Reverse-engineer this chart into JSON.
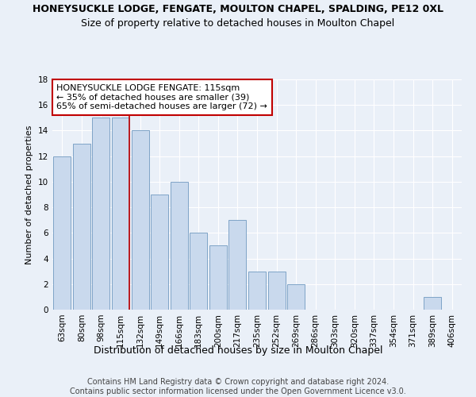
{
  "title": "HONEYSUCKLE LODGE, FENGATE, MOULTON CHAPEL, SPALDING, PE12 0XL",
  "subtitle": "Size of property relative to detached houses in Moulton Chapel",
  "xlabel": "Distribution of detached houses by size in Moulton Chapel",
  "ylabel": "Number of detached properties",
  "categories": [
    "63sqm",
    "80sqm",
    "98sqm",
    "115sqm",
    "132sqm",
    "149sqm",
    "166sqm",
    "183sqm",
    "200sqm",
    "217sqm",
    "235sqm",
    "252sqm",
    "269sqm",
    "286sqm",
    "303sqm",
    "320sqm",
    "337sqm",
    "354sqm",
    "371sqm",
    "389sqm",
    "406sqm"
  ],
  "values": [
    12,
    13,
    15,
    15,
    14,
    9,
    10,
    6,
    5,
    7,
    3,
    3,
    2,
    0,
    0,
    0,
    0,
    0,
    0,
    1,
    0
  ],
  "bar_color": "#c9d9ed",
  "bar_edge_color": "#7099c0",
  "highlight_index": 3,
  "highlight_line_color": "#c00000",
  "ylim": [
    0,
    18
  ],
  "yticks": [
    0,
    2,
    4,
    6,
    8,
    10,
    12,
    14,
    16,
    18
  ],
  "annotation_text": "HONEYSUCKLE LODGE FENGATE: 115sqm\n← 35% of detached houses are smaller (39)\n65% of semi-detached houses are larger (72) →",
  "annotation_box_color": "#ffffff",
  "annotation_box_edge": "#c00000",
  "footer_line1": "Contains HM Land Registry data © Crown copyright and database right 2024.",
  "footer_line2": "Contains public sector information licensed under the Open Government Licence v3.0.",
  "bg_color": "#eaf0f8",
  "grid_color": "#ffffff",
  "title_fontsize": 9,
  "subtitle_fontsize": 9,
  "ylabel_fontsize": 8,
  "xlabel_fontsize": 9,
  "tick_fontsize": 7.5,
  "annotation_fontsize": 8,
  "footer_fontsize": 7
}
